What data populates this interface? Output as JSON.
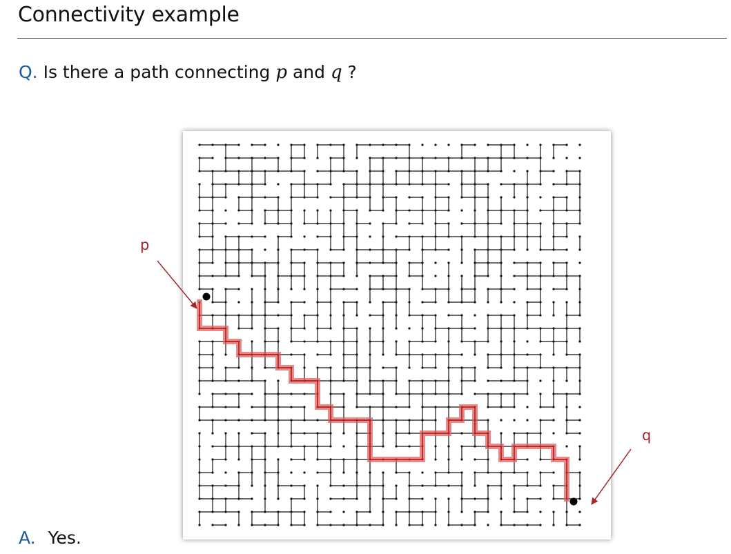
{
  "slide": {
    "title": "Connectivity example"
  },
  "question": {
    "prefix": "Q.",
    "text_before": "Is there a path connecting",
    "var_p": "p",
    "text_and": "and",
    "var_q": "q",
    "text_after": "?"
  },
  "answer": {
    "prefix": "A.",
    "text": "Yes."
  },
  "labels": {
    "p": "p",
    "q": "q"
  },
  "grid": {
    "cols": 30,
    "rows": 30,
    "site_color": "#111111",
    "path_color": "#e06060",
    "arrow_color": "#a3262a",
    "endpoint_p": {
      "col": 0,
      "row": 12
    },
    "endpoint_q": {
      "col": 28,
      "row": 27
    },
    "path": [
      [
        0,
        12
      ],
      [
        0,
        13
      ],
      [
        0,
        14
      ],
      [
        1,
        14
      ],
      [
        2,
        14
      ],
      [
        2,
        15
      ],
      [
        3,
        15
      ],
      [
        3,
        16
      ],
      [
        4,
        16
      ],
      [
        5,
        16
      ],
      [
        6,
        16
      ],
      [
        6,
        17
      ],
      [
        7,
        17
      ],
      [
        7,
        18
      ],
      [
        8,
        18
      ],
      [
        9,
        18
      ],
      [
        9,
        19
      ],
      [
        9,
        20
      ],
      [
        10,
        20
      ],
      [
        10,
        21
      ],
      [
        11,
        21
      ],
      [
        12,
        21
      ],
      [
        13,
        21
      ],
      [
        13,
        22
      ],
      [
        13,
        23
      ],
      [
        13,
        24
      ],
      [
        14,
        24
      ],
      [
        15,
        24
      ],
      [
        16,
        24
      ],
      [
        17,
        24
      ],
      [
        17,
        23
      ],
      [
        17,
        22
      ],
      [
        18,
        22
      ],
      [
        19,
        22
      ],
      [
        19,
        21
      ],
      [
        20,
        21
      ],
      [
        20,
        20
      ],
      [
        21,
        20
      ],
      [
        21,
        21
      ],
      [
        21,
        22
      ],
      [
        22,
        22
      ],
      [
        22,
        23
      ],
      [
        23,
        23
      ],
      [
        23,
        24
      ],
      [
        24,
        24
      ],
      [
        24,
        23
      ],
      [
        25,
        23
      ],
      [
        26,
        23
      ],
      [
        27,
        23
      ],
      [
        27,
        24
      ],
      [
        28,
        24
      ],
      [
        28,
        25
      ],
      [
        28,
        26
      ],
      [
        28,
        27
      ]
    ]
  }
}
